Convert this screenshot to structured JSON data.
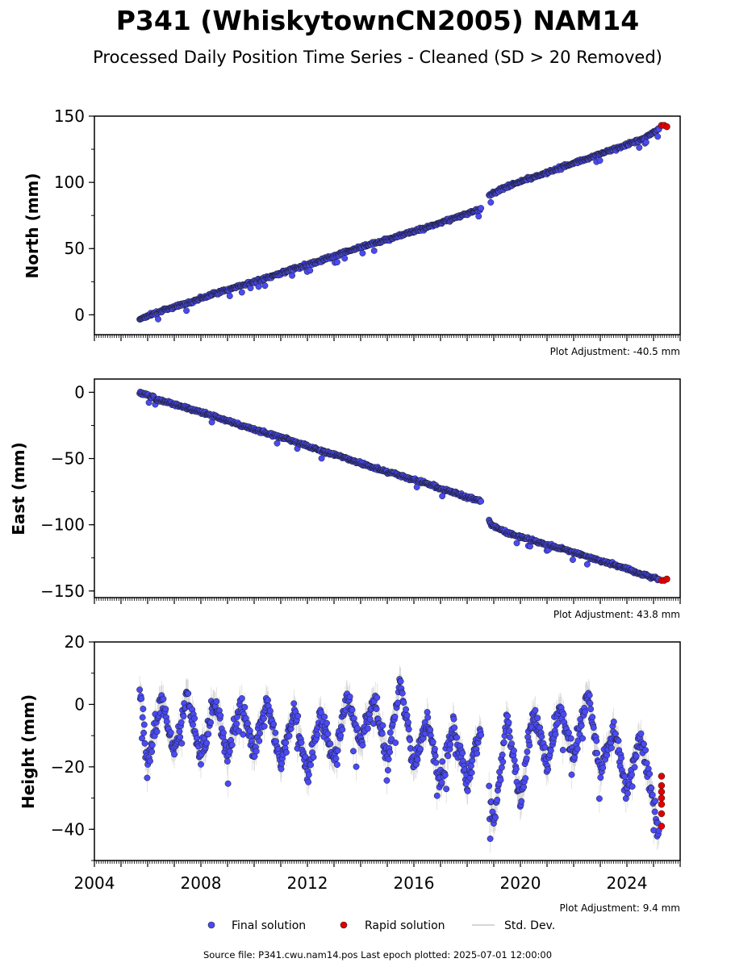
{
  "chart_data": {
    "type": "scatter",
    "title": "P341 (WhiskytownCN2005) NAM14",
    "subtitle": "Processed Daily Position Time Series - Cleaned (SD > 20 Removed)",
    "x_ticks": [
      "2004",
      "2008",
      "2012",
      "2016",
      "2020",
      "2024"
    ],
    "xlim": [
      2004.0,
      2026.0
    ],
    "legend": {
      "placement": "bottom-center",
      "entries": [
        "Final solution",
        "Rapid solution",
        "Std. Dev."
      ]
    },
    "colors": {
      "final": "#4a4af4",
      "rapid": "#e00000",
      "std_dev": "#b0b0b0"
    },
    "footer": "Source file: P341.cwu.nam14.pos  Last epoch plotted: 2025-07-01 12:00:00",
    "panels": [
      {
        "ylabel": "North (mm)",
        "ylim": [
          -15,
          150
        ],
        "y_ticks": [
          "150",
          "100",
          "50",
          "0"
        ],
        "adjustment": "Plot Adjustment: -40.5 mm",
        "final_series": {
          "name": "Final solution",
          "x": [
            2005.7,
            2006.5,
            2007.5,
            2008.5,
            2009.5,
            2010.5,
            2011.5,
            2012.5,
            2013.5,
            2014.5,
            2015.5,
            2016.5,
            2017.5,
            2018.5,
            2018.7,
            2018.9,
            2019.5,
            2020.5,
            2021.5,
            2022.5,
            2023.5,
            2024.5,
            2025.2
          ],
          "y": [
            -3,
            3,
            9,
            16,
            22,
            28,
            35,
            41,
            48,
            54,
            60,
            66,
            73,
            80,
            87,
            91,
            97,
            104,
            111,
            118,
            125,
            132,
            140
          ]
        },
        "rapid_series": {
          "name": "Rapid solution",
          "x": [
            2025.3,
            2025.4,
            2025.5
          ],
          "y": [
            143,
            143,
            142
          ]
        }
      },
      {
        "ylabel": "East (mm)",
        "ylim": [
          -155,
          10
        ],
        "y_ticks": [
          "0",
          "−50",
          "−100",
          "−150"
        ],
        "adjustment": "Plot Adjustment: 43.8 mm",
        "final_series": {
          "name": "Final solution",
          "x": [
            2005.7,
            2006.5,
            2007.5,
            2008.5,
            2009.5,
            2010.5,
            2011.5,
            2012.5,
            2013.5,
            2014.5,
            2015.5,
            2016.5,
            2017.5,
            2018.5,
            2018.7,
            2018.9,
            2019.5,
            2020.5,
            2021.5,
            2022.5,
            2023.5,
            2024.5,
            2025.2
          ],
          "y": [
            0,
            -6,
            -12,
            -18,
            -25,
            -31,
            -37,
            -44,
            -50,
            -57,
            -63,
            -69,
            -76,
            -82,
            -90,
            -100,
            -106,
            -112,
            -118,
            -124,
            -130,
            -137,
            -141
          ]
        },
        "rapid_series": {
          "name": "Rapid solution",
          "x": [
            2025.3,
            2025.4,
            2025.5
          ],
          "y": [
            -142,
            -142,
            -141
          ]
        }
      },
      {
        "ylabel": "Height (mm)",
        "ylim": [
          -50,
          20
        ],
        "y_ticks": [
          "20",
          "0",
          "−20",
          "−40"
        ],
        "adjustment": "Plot Adjustment: 9.4 mm",
        "final_series": {
          "name": "Final solution",
          "x": [
            2005.7,
            2006.0,
            2006.5,
            2007.0,
            2007.5,
            2008.0,
            2008.5,
            2009.0,
            2009.5,
            2010.0,
            2010.5,
            2011.0,
            2011.5,
            2012.0,
            2012.5,
            2013.0,
            2013.5,
            2014.0,
            2014.5,
            2015.0,
            2015.5,
            2016.0,
            2016.5,
            2017.0,
            2017.5,
            2018.0,
            2018.5,
            2019.0,
            2019.5,
            2020.0,
            2020.5,
            2021.0,
            2021.5,
            2022.0,
            2022.5,
            2023.0,
            2023.5,
            2024.0,
            2024.5,
            2025.0,
            2025.2
          ],
          "y": [
            5,
            -20,
            2,
            -15,
            3,
            -18,
            2,
            -17,
            0,
            -15,
            1,
            -20,
            -2,
            -22,
            -3,
            -18,
            2,
            -12,
            3,
            -18,
            8,
            -20,
            -5,
            -25,
            -6,
            -25,
            -8,
            -38,
            -5,
            -30,
            -2,
            -20,
            0,
            -18,
            5,
            -22,
            -8,
            -28,
            -10,
            -30,
            -42
          ]
        },
        "rapid_series": {
          "name": "Rapid solution",
          "x": [
            2025.3,
            2025.3,
            2025.3,
            2025.3,
            2025.3,
            2025.3,
            2025.3
          ],
          "y": [
            -23,
            -26,
            -28,
            -30,
            -32,
            -35,
            -39
          ]
        }
      }
    ]
  }
}
